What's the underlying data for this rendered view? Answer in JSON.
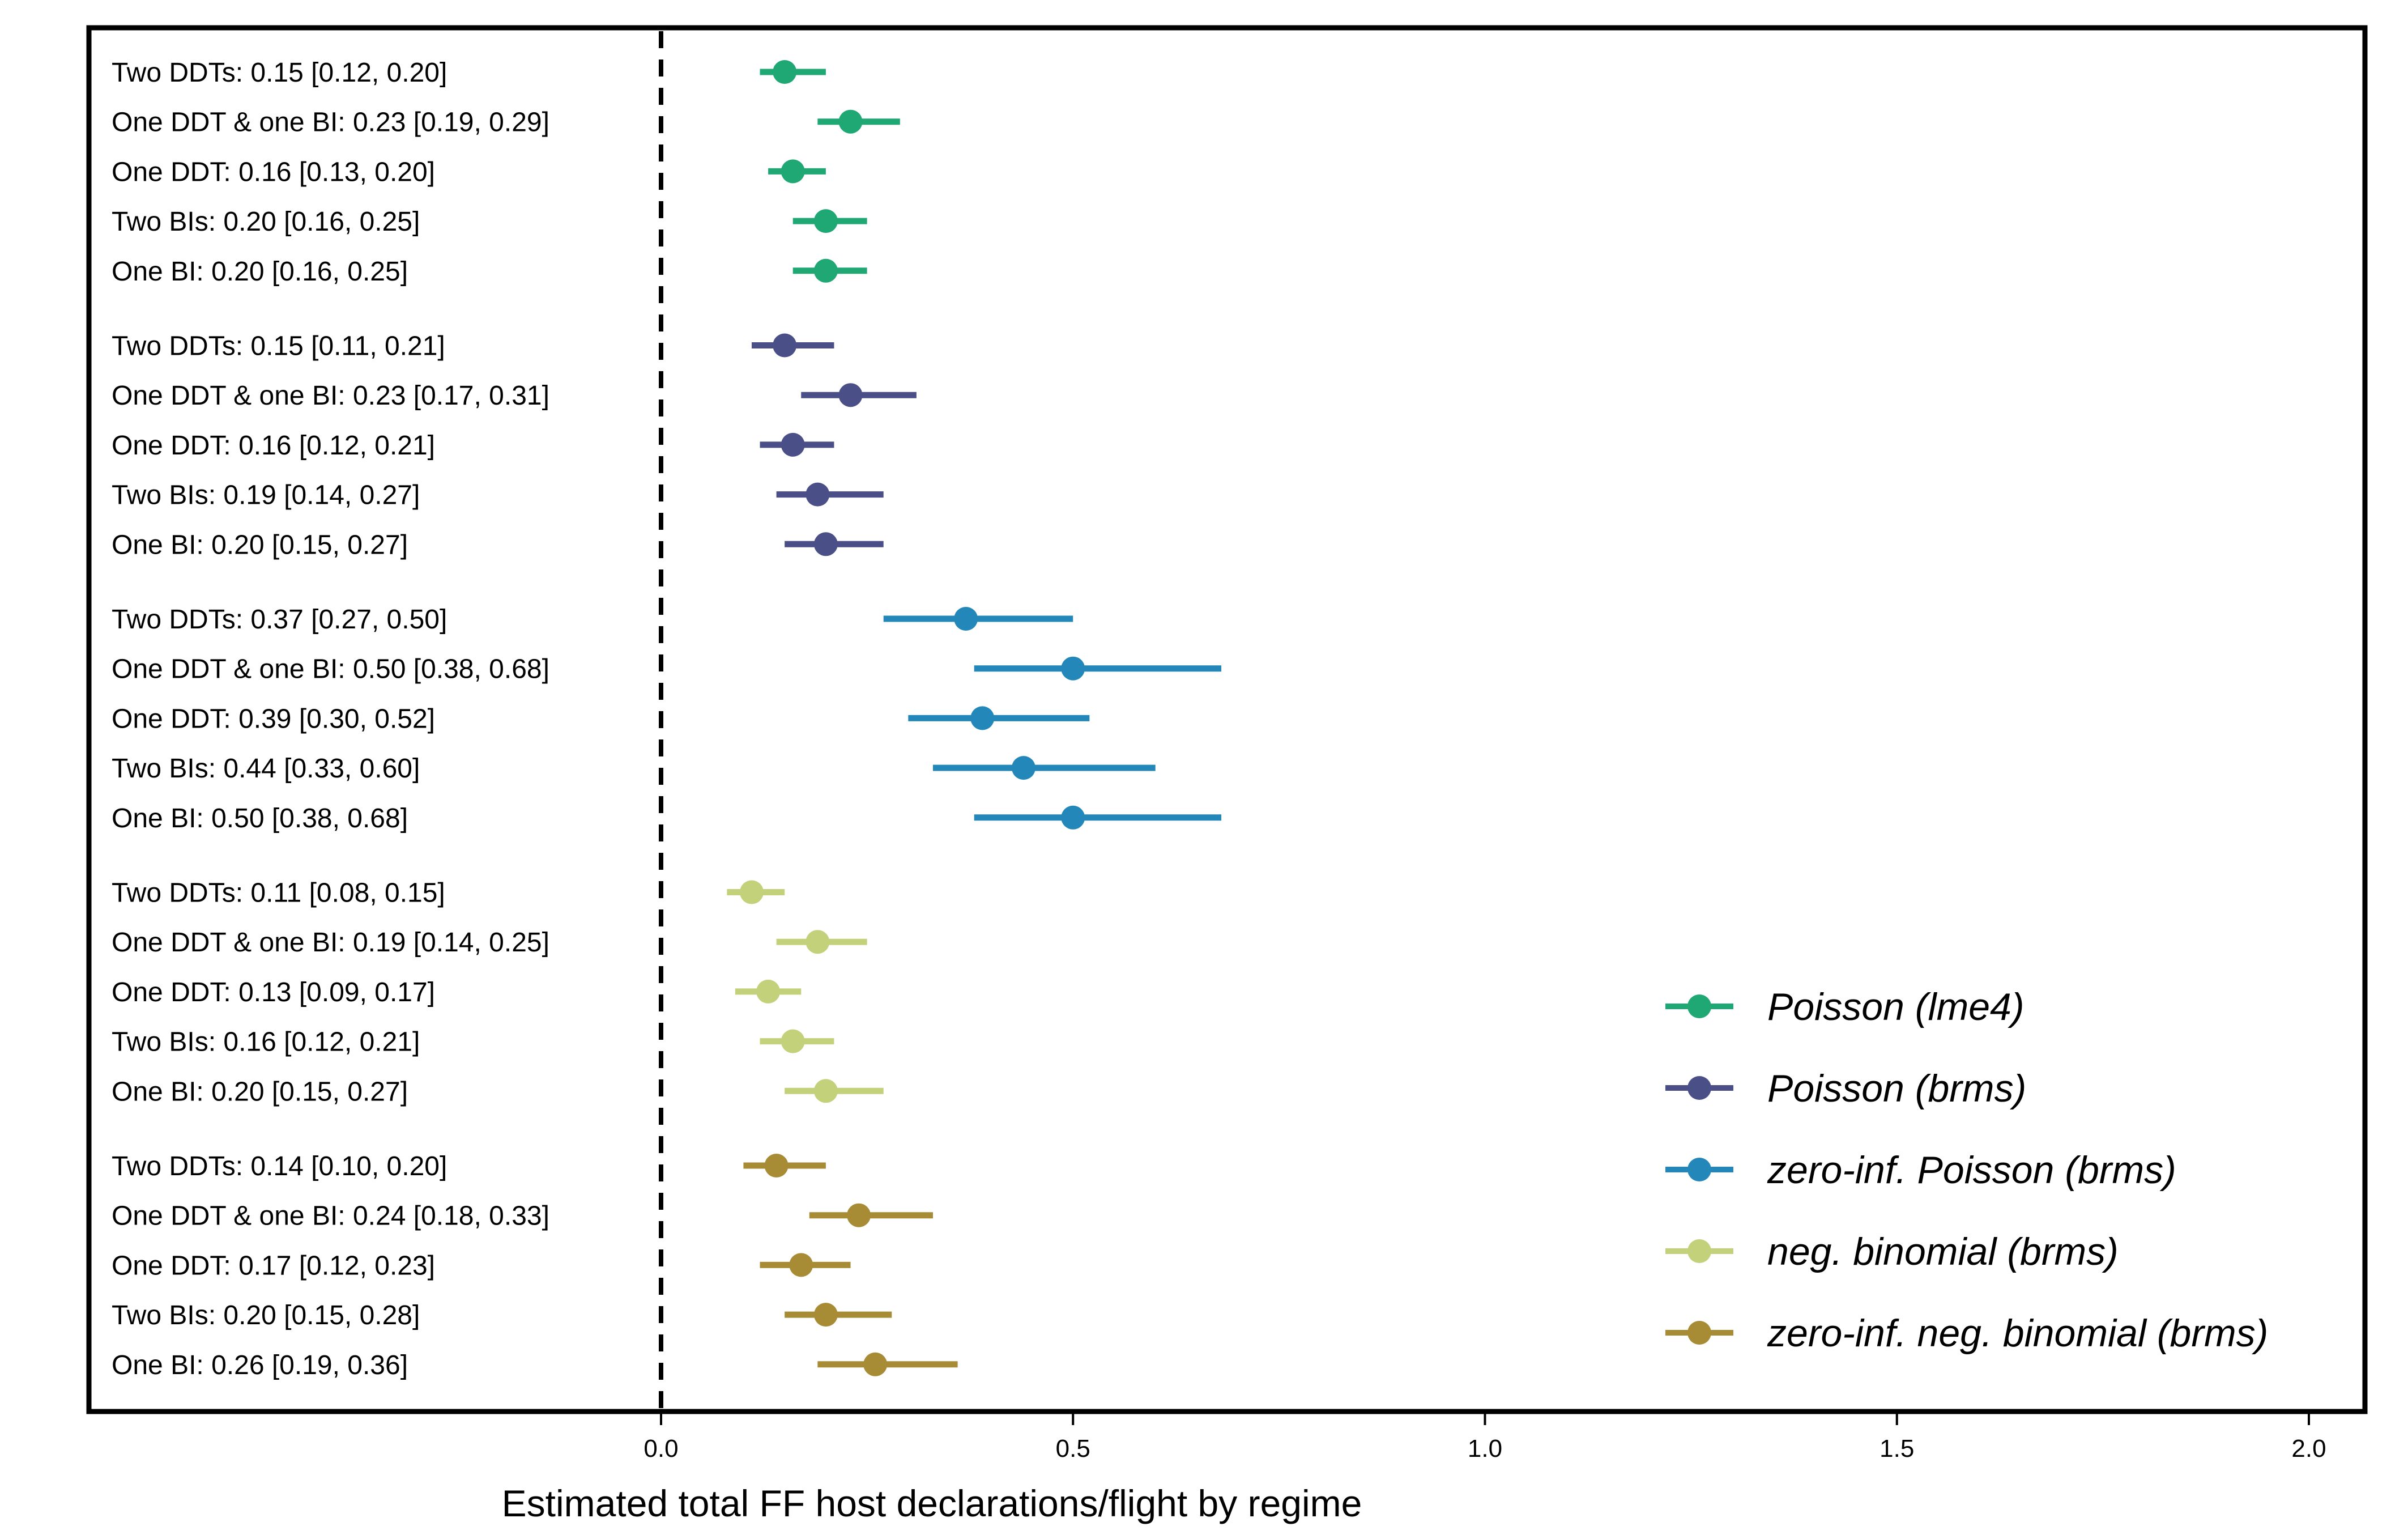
{
  "chart_data": {
    "type": "scatter",
    "subtype": "forest-plot",
    "title": "",
    "xlabel": "Estimated total FF host declarations/flight by regime",
    "ylabel": "",
    "xlim": [
      0.0,
      2.0
    ],
    "xticks": [
      "0.0",
      "0.5",
      "1.0",
      "1.5",
      "2.0"
    ],
    "reference_line": {
      "x": 0,
      "style": "dashed"
    },
    "legend_position": "bottom-right",
    "grid": false,
    "series": [
      {
        "name": "Poisson (lme4)",
        "color": "#1fa774",
        "points": [
          {
            "label": "Two DDTs: 0.15 [0.12, 0.20]",
            "estimate": 0.15,
            "lower": 0.12,
            "upper": 0.2
          },
          {
            "label": "One DDT & one BI: 0.23 [0.19, 0.29]",
            "estimate": 0.23,
            "lower": 0.19,
            "upper": 0.29
          },
          {
            "label": "One DDT: 0.16 [0.13, 0.20]",
            "estimate": 0.16,
            "lower": 0.13,
            "upper": 0.2
          },
          {
            "label": "Two BIs: 0.20 [0.16, 0.25]",
            "estimate": 0.2,
            "lower": 0.16,
            "upper": 0.25
          },
          {
            "label": "One BI: 0.20 [0.16, 0.25]",
            "estimate": 0.2,
            "lower": 0.16,
            "upper": 0.25
          }
        ]
      },
      {
        "name": "Poisson (brms)",
        "color": "#4a4f87",
        "points": [
          {
            "label": "Two DDTs: 0.15 [0.11, 0.21]",
            "estimate": 0.15,
            "lower": 0.11,
            "upper": 0.21
          },
          {
            "label": "One DDT & one BI: 0.23 [0.17, 0.31]",
            "estimate": 0.23,
            "lower": 0.17,
            "upper": 0.31
          },
          {
            "label": "One DDT: 0.16 [0.12, 0.21]",
            "estimate": 0.16,
            "lower": 0.12,
            "upper": 0.21
          },
          {
            "label": "Two BIs: 0.19 [0.14, 0.27]",
            "estimate": 0.19,
            "lower": 0.14,
            "upper": 0.27
          },
          {
            "label": "One BI: 0.20 [0.15, 0.27]",
            "estimate": 0.2,
            "lower": 0.15,
            "upper": 0.27
          }
        ]
      },
      {
        "name": "zero-inf. Poisson (brms)",
        "color": "#2387b9",
        "points": [
          {
            "label": "Two DDTs: 0.37 [0.27, 0.50]",
            "estimate": 0.37,
            "lower": 0.27,
            "upper": 0.5
          },
          {
            "label": "One DDT & one BI: 0.50 [0.38, 0.68]",
            "estimate": 0.5,
            "lower": 0.38,
            "upper": 0.68
          },
          {
            "label": "One DDT: 0.39 [0.30, 0.52]",
            "estimate": 0.39,
            "lower": 0.3,
            "upper": 0.52
          },
          {
            "label": "Two BIs: 0.44 [0.33, 0.60]",
            "estimate": 0.44,
            "lower": 0.33,
            "upper": 0.6
          },
          {
            "label": "One BI: 0.50 [0.38, 0.68]",
            "estimate": 0.5,
            "lower": 0.38,
            "upper": 0.68
          }
        ]
      },
      {
        "name": "neg. binomial (brms)",
        "color": "#c3d17a",
        "points": [
          {
            "label": "Two DDTs: 0.11 [0.08, 0.15]",
            "estimate": 0.11,
            "lower": 0.08,
            "upper": 0.15
          },
          {
            "label": "One DDT & one BI: 0.19 [0.14, 0.25]",
            "estimate": 0.19,
            "lower": 0.14,
            "upper": 0.25
          },
          {
            "label": "One DDT: 0.13 [0.09, 0.17]",
            "estimate": 0.13,
            "lower": 0.09,
            "upper": 0.17
          },
          {
            "label": "Two BIs: 0.16 [0.12, 0.21]",
            "estimate": 0.16,
            "lower": 0.12,
            "upper": 0.21
          },
          {
            "label": "One BI: 0.20 [0.15, 0.27]",
            "estimate": 0.2,
            "lower": 0.15,
            "upper": 0.27
          }
        ]
      },
      {
        "name": "zero-inf. neg. binomial (brms)",
        "color": "#a88b35",
        "points": [
          {
            "label": "Two DDTs: 0.14 [0.10, 0.20]",
            "estimate": 0.14,
            "lower": 0.1,
            "upper": 0.2
          },
          {
            "label": "One DDT & one BI: 0.24 [0.18, 0.33]",
            "estimate": 0.24,
            "lower": 0.18,
            "upper": 0.33
          },
          {
            "label": "One DDT: 0.17 [0.12, 0.23]",
            "estimate": 0.17,
            "lower": 0.12,
            "upper": 0.23
          },
          {
            "label": "Two BIs: 0.20 [0.15, 0.28]",
            "estimate": 0.2,
            "lower": 0.15,
            "upper": 0.28
          },
          {
            "label": "One BI: 0.26 [0.19, 0.36]",
            "estimate": 0.26,
            "lower": 0.19,
            "upper": 0.36
          }
        ]
      }
    ]
  }
}
